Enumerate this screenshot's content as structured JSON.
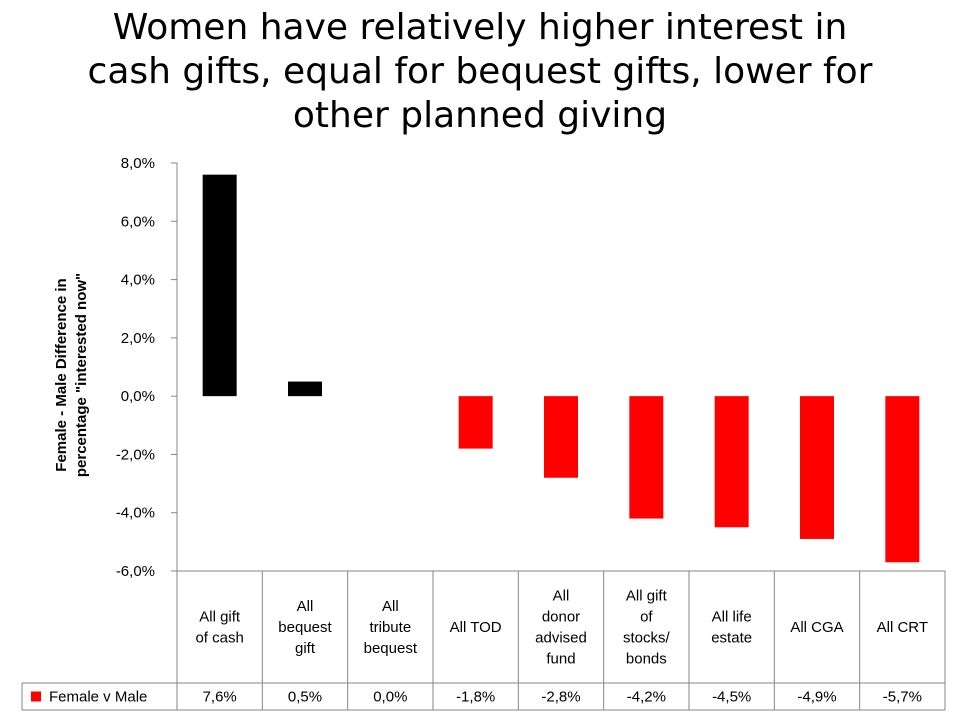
{
  "title_lines": [
    "Women have relatively higher interest in",
    "cash gifts, equal for bequest gifts, lower for",
    "other planned giving"
  ],
  "chart_data": {
    "type": "bar",
    "title": "Women have relatively higher interest in cash gifts, equal for bequest gifts, lower for other planned giving",
    "ylabel_lines": [
      "Female - Male Difference in",
      "percentage \"interested now\""
    ],
    "ylim": [
      -6.0,
      8.0
    ],
    "yticks": [
      8.0,
      6.0,
      4.0,
      2.0,
      0.0,
      -2.0,
      -4.0,
      -6.0
    ],
    "ytick_labels": [
      "8,0%",
      "6,0%",
      "4,0%",
      "2,0%",
      "0,0%",
      "-2,0%",
      "-4,0%",
      "-6,0%"
    ],
    "categories": [
      [
        "All gift",
        "of cash"
      ],
      [
        "All",
        "bequest",
        "gift"
      ],
      [
        "All",
        "tribute",
        "bequest"
      ],
      [
        "All TOD"
      ],
      [
        "All",
        "donor",
        "advised",
        "fund"
      ],
      [
        "All gift",
        "of",
        "stocks/",
        "bonds"
      ],
      [
        "All life",
        "estate"
      ],
      [
        "All CGA"
      ],
      [
        "All CRT"
      ]
    ],
    "series": [
      {
        "name": "Female v Male",
        "values": [
          7.6,
          0.5,
          0.0,
          -1.8,
          -2.8,
          -4.2,
          -4.5,
          -4.9,
          -5.7
        ],
        "value_labels": [
          "7,6%",
          "0,5%",
          "0,0%",
          "-1,8%",
          "-2,8%",
          "-4,2%",
          "-4,5%",
          "-4,9%",
          "-5,7%"
        ]
      }
    ],
    "colors": {
      "positive": "#000000",
      "negative": "#ff0000",
      "legend_key": "#ff0000"
    },
    "grid": false,
    "legend": "data-table"
  }
}
